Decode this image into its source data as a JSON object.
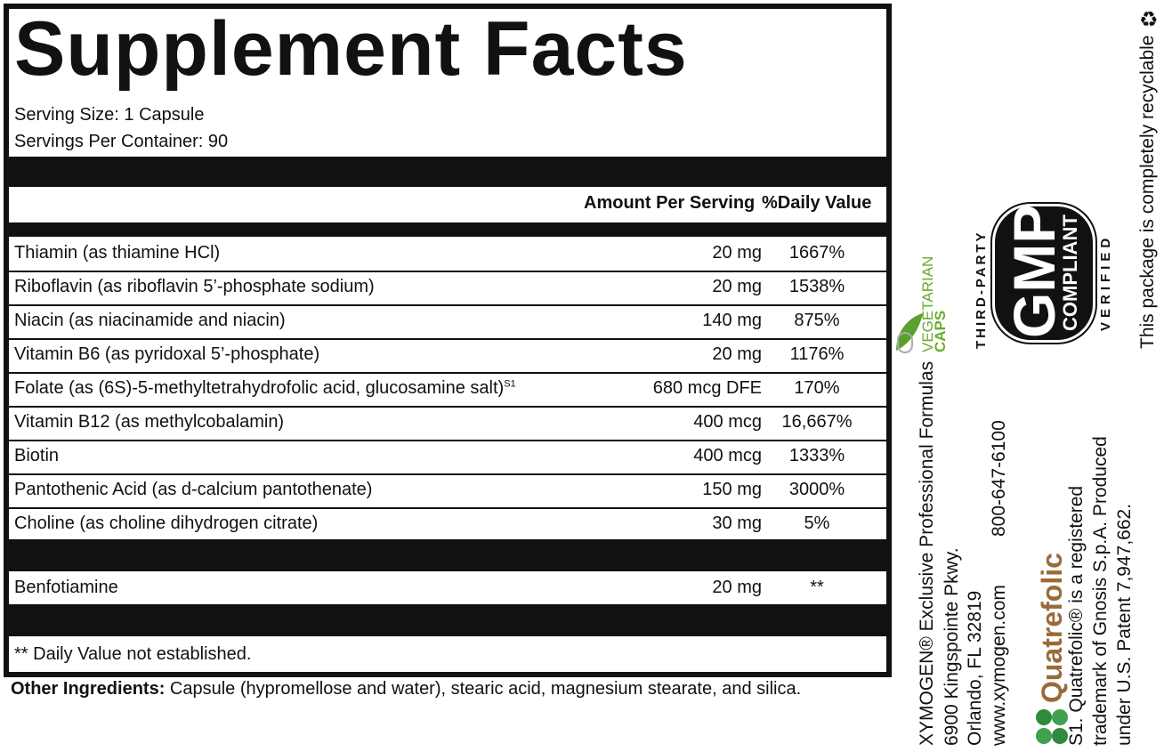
{
  "title": "Supplement Facts",
  "serving_size": "Serving Size: 1 Capsule",
  "servings_per_container": "Servings Per Container: 90",
  "header": {
    "amount": "Amount Per Serving",
    "dv": "%Daily Value"
  },
  "rows": [
    {
      "name": "Thiamin (as thiamine HCl)",
      "amount": "20 mg",
      "dv": "1667%"
    },
    {
      "name": "Riboflavin (as riboflavin 5’-phosphate sodium)",
      "amount": "20 mg",
      "dv": "1538%"
    },
    {
      "name": "Niacin (as niacinamide and niacin)",
      "amount": "140 mg",
      "dv": "875%"
    },
    {
      "name": "Vitamin B6 (as pyridoxal 5’-phosphate)",
      "amount": "20 mg",
      "dv": "1176%"
    },
    {
      "name": "Folate (as (6S)-5-methyltetrahydrofolic acid, glucosamine salt)",
      "sup": "S1",
      "amount": "680 mcg DFE",
      "dv": "170%"
    },
    {
      "name": "Vitamin B12 (as methylcobalamin)",
      "amount": "400 mcg",
      "dv": "16,667%"
    },
    {
      "name": "Biotin",
      "amount": "400 mcg",
      "dv": "1333%"
    },
    {
      "name": "Pantothenic Acid (as d-calcium pantothenate)",
      "amount": "150 mg",
      "dv": "3000%"
    },
    {
      "name": "Choline (as choline dihydrogen citrate)",
      "amount": "30 mg",
      "dv": "5%"
    }
  ],
  "extra": {
    "name": "Benfotiamine",
    "amount": "20 mg",
    "dv": "**"
  },
  "footnote": "** Daily Value not established.",
  "other": {
    "label": "Other Ingredients:",
    "text": " Capsule (hypromellose and water), stearic acid, magnesium stearate, and silica."
  },
  "company": {
    "line1": "XYMOGEN® Exclusive Professional Formulas",
    "line2": "6900 Kingspointe Pkwy.",
    "line3": "Orlando, FL 32819",
    "line4": "www.xymogen.com",
    "phone": "800-647-6100"
  },
  "veg": {
    "line1": "VEGETARIAN",
    "line2": "CAPS",
    "color": "#6aab2e"
  },
  "gmp": {
    "top": "THIRD-PARTY",
    "big": "GMP",
    "sub": "COMPLIANT",
    "bottom": "VERIFIED"
  },
  "quatrefolic": {
    "logo": "Quatrefolic",
    "color": "#9a6b3a",
    "leaf": "#2e8b3e",
    "s1_line1": "S1. Quatrefolic® is a registered",
    "s1_line2": "trademark of Gnosis S.p.A. Produced",
    "s1_line3": "under U.S. Patent 7,947,662."
  },
  "recycle": "This package is completely recyclable"
}
